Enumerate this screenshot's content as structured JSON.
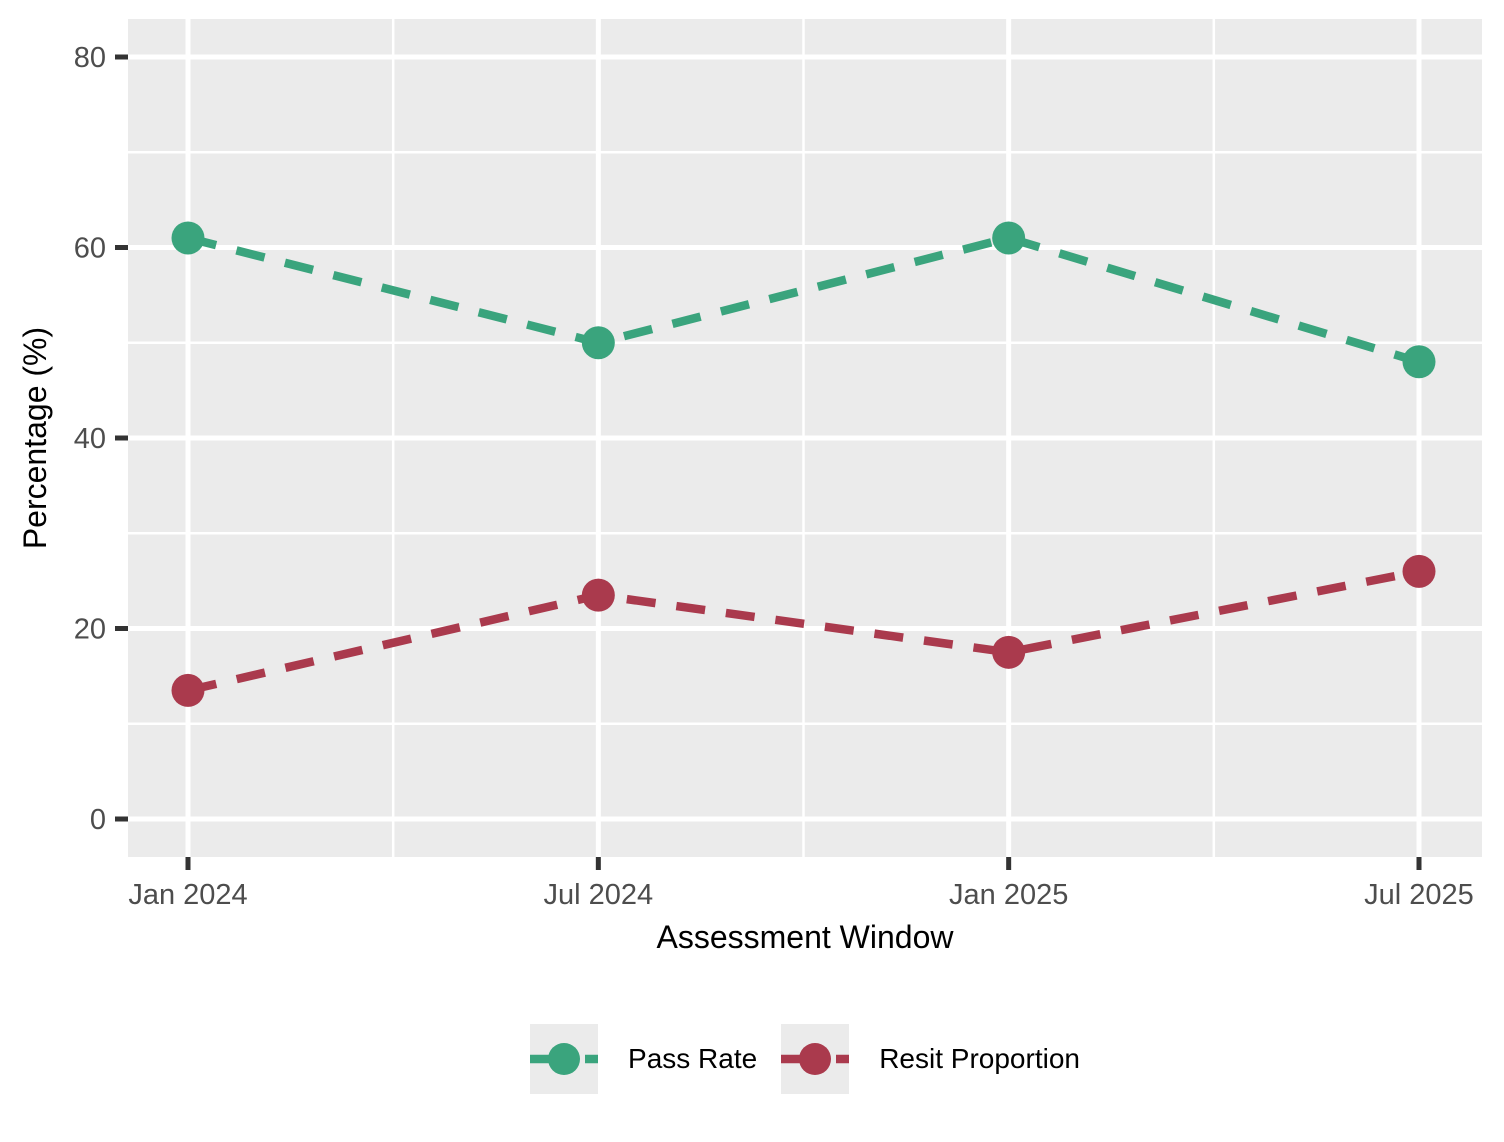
{
  "chart_data": {
    "type": "line",
    "title": "",
    "xlabel": "Assessment Window",
    "ylabel": "Percentage (%)",
    "categories": [
      "Jan 2024",
      "Jul 2024",
      "Jan 2025",
      "Jul 2025"
    ],
    "series": [
      {
        "name": "Pass Rate",
        "color": "#3AA47D",
        "values": [
          61,
          50,
          61,
          48
        ]
      },
      {
        "name": "Resit Proportion",
        "color": "#AA3A4D",
        "values": [
          13.5,
          23.5,
          17.5,
          26
        ]
      }
    ],
    "ylim": [
      0,
      80
    ],
    "yticks": [
      0,
      20,
      40,
      60,
      80
    ],
    "yticks_minor": [
      10,
      30,
      50,
      70
    ],
    "grid": true,
    "line_style": "dashed",
    "legend_position": "bottom",
    "colors": {
      "panel_bg": "#EBEBEB",
      "grid": "#FFFFFF",
      "tick_mark": "#333333",
      "tick_label": "#4D4D4D",
      "axis_title": "#000000",
      "legend_key_bg": "#EBEBEB"
    }
  }
}
